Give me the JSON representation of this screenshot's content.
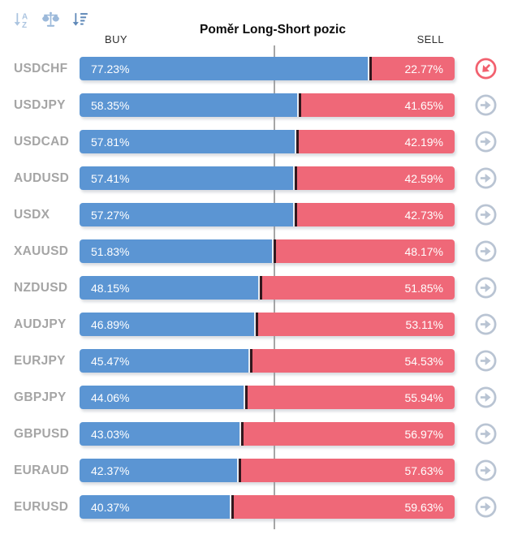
{
  "header": {
    "title": "Poměr Long-Short pozic",
    "buy_label": "BUY",
    "sell_label": "SELL"
  },
  "toolbar": {
    "icons": [
      {
        "name": "sort-alphabetical-descending-icon",
        "state": "inactive"
      },
      {
        "name": "balance-scale-icon",
        "state": "inactive"
      },
      {
        "name": "sort-amount-descending-icon",
        "state": "active"
      }
    ]
  },
  "colors": {
    "buy": "#5b95d3",
    "sell": "#ef6878",
    "divider": "#31181e",
    "pair_label": "#a5a5a5",
    "centerline": "#a6a6a6",
    "icon_active": "#f2616f",
    "icon_inactive": "#b9c4d3",
    "toolbar_icon_light": "#abc4e0",
    "toolbar_icon_dark": "#5e88b8"
  },
  "rows": [
    {
      "pair": "USDCHF",
      "buy_pct": 77.23,
      "sell_pct": 22.77,
      "buy_label": "77.23%",
      "sell_label": "22.77%",
      "action_state": "active"
    },
    {
      "pair": "USDJPY",
      "buy_pct": 58.35,
      "sell_pct": 41.65,
      "buy_label": "58.35%",
      "sell_label": "41.65%",
      "action_state": "default"
    },
    {
      "pair": "USDCAD",
      "buy_pct": 57.81,
      "sell_pct": 42.19,
      "buy_label": "57.81%",
      "sell_label": "42.19%",
      "action_state": "default"
    },
    {
      "pair": "AUDUSD",
      "buy_pct": 57.41,
      "sell_pct": 42.59,
      "buy_label": "57.41%",
      "sell_label": "42.59%",
      "action_state": "default"
    },
    {
      "pair": "USDX",
      "buy_pct": 57.27,
      "sell_pct": 42.73,
      "buy_label": "57.27%",
      "sell_label": "42.73%",
      "action_state": "default"
    },
    {
      "pair": "XAUUSD",
      "buy_pct": 51.83,
      "sell_pct": 48.17,
      "buy_label": "51.83%",
      "sell_label": "48.17%",
      "action_state": "default"
    },
    {
      "pair": "NZDUSD",
      "buy_pct": 48.15,
      "sell_pct": 51.85,
      "buy_label": "48.15%",
      "sell_label": "51.85%",
      "action_state": "default"
    },
    {
      "pair": "AUDJPY",
      "buy_pct": 46.89,
      "sell_pct": 53.11,
      "buy_label": "46.89%",
      "sell_label": "53.11%",
      "action_state": "default"
    },
    {
      "pair": "EURJPY",
      "buy_pct": 45.47,
      "sell_pct": 54.53,
      "buy_label": "45.47%",
      "sell_label": "54.53%",
      "action_state": "default"
    },
    {
      "pair": "GBPJPY",
      "buy_pct": 44.06,
      "sell_pct": 55.94,
      "buy_label": "44.06%",
      "sell_label": "55.94%",
      "action_state": "default"
    },
    {
      "pair": "GBPUSD",
      "buy_pct": 43.03,
      "sell_pct": 56.97,
      "buy_label": "43.03%",
      "sell_label": "56.97%",
      "action_state": "default"
    },
    {
      "pair": "EURAUD",
      "buy_pct": 42.37,
      "sell_pct": 57.63,
      "buy_label": "42.37%",
      "sell_label": "57.63%",
      "action_state": "default"
    },
    {
      "pair": "EURUSD",
      "buy_pct": 40.37,
      "sell_pct": 59.63,
      "buy_label": "40.37%",
      "sell_label": "59.63%",
      "action_state": "default"
    }
  ],
  "chart_data": {
    "type": "bar",
    "orientation": "horizontal",
    "stacked": true,
    "title": "Poměr Long-Short pozic",
    "categories": [
      "USDCHF",
      "USDJPY",
      "USDCAD",
      "AUDUSD",
      "USDX",
      "XAUUSD",
      "NZDUSD",
      "AUDJPY",
      "EURJPY",
      "GBPJPY",
      "GBPUSD",
      "EURAUD",
      "EURUSD"
    ],
    "series": [
      {
        "name": "BUY",
        "color": "#5b95d3",
        "values": [
          77.23,
          58.35,
          57.81,
          57.41,
          57.27,
          51.83,
          48.15,
          46.89,
          45.47,
          44.06,
          43.03,
          42.37,
          40.37
        ]
      },
      {
        "name": "SELL",
        "color": "#ef6878",
        "values": [
          22.77,
          41.65,
          42.19,
          42.59,
          42.73,
          48.17,
          51.85,
          53.11,
          54.53,
          55.94,
          56.97,
          57.63,
          59.63
        ]
      }
    ],
    "value_format": "percent",
    "xlim": [
      0,
      100
    ],
    "center_reference_line": 50,
    "grid": false,
    "legend_position": "top",
    "sort_order": "BUY descending"
  }
}
